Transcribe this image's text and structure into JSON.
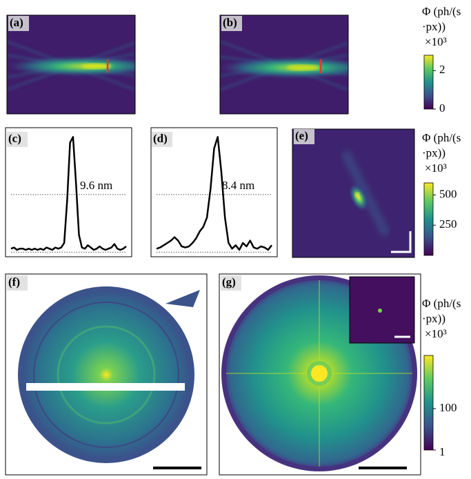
{
  "panel_labels": [
    "(a)",
    "(b)",
    "(c)",
    "(d)",
    "(e)",
    "(f)",
    "(g)"
  ],
  "colorbars": [
    {
      "title": [
        "Φ (ph/(s",
        "·px))"
      ],
      "multiplier": "×10³",
      "lim": [
        0,
        2.8
      ],
      "ticks": [
        0,
        2
      ],
      "log": false
    },
    {
      "title": [
        "Φ (ph/(s",
        "·px))"
      ],
      "multiplier": "×10³",
      "lim": [
        0,
        600
      ],
      "ticks": [
        250,
        500
      ],
      "log": false
    },
    {
      "title": [
        "Φ (ph/(s",
        "·px))"
      ],
      "multiplier": "×10³",
      "lim": [
        1,
        37000
      ],
      "ticks": [
        1,
        100
      ],
      "log": true
    }
  ],
  "chart_data": [
    {
      "type": "line",
      "annotation": "9.6 nm",
      "color": "#000000",
      "ylim": [
        -0.04,
        1.08
      ],
      "reference_lines": [
        0,
        0.5
      ],
      "values": [
        0.03,
        0.04,
        0.02,
        0.03,
        0.03,
        0.02,
        0.03,
        0.02,
        0.03,
        0.02,
        0.03,
        0.02,
        0.04,
        0.03,
        0.02,
        0.04,
        0.03,
        0.04,
        0.08,
        0.45,
        0.95,
        1.0,
        0.6,
        0.15,
        0.04,
        0.03,
        0.06,
        0.04,
        0.02,
        0.03,
        0.05,
        0.03,
        0.02,
        0.03,
        0.04,
        0.07,
        0.03,
        0.02,
        0.03,
        0.05
      ]
    },
    {
      "type": "line",
      "annotation": "8.4 nm",
      "color": "#000000",
      "ylim": [
        -0.04,
        1.08
      ],
      "reference_lines": [
        0,
        0.5
      ],
      "values": [
        0.03,
        0.04,
        0.06,
        0.08,
        0.1,
        0.13,
        0.1,
        0.05,
        0.04,
        0.05,
        0.08,
        0.12,
        0.18,
        0.22,
        0.3,
        0.55,
        0.9,
        1.0,
        0.7,
        0.3,
        0.08,
        0.03,
        0.06,
        0.02,
        0.08,
        0.05,
        0.1,
        0.04,
        0.03,
        0.05,
        0.04,
        0.02,
        0.06
      ]
    }
  ]
}
